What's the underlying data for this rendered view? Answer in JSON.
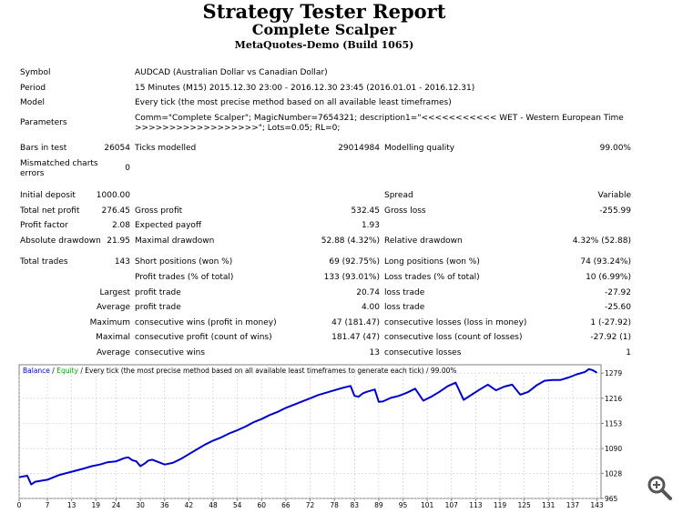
{
  "header": {
    "title": "Strategy Tester Report",
    "subtitle": "Complete Scalper",
    "server": "MetaQuotes-Demo (Build 1065)"
  },
  "info": {
    "symbol_label": "Symbol",
    "symbol_value": "AUDCAD (Australian Dollar vs Canadian Dollar)",
    "period_label": "Period",
    "period_value": "15 Minutes (M15) 2015.12.30 23:00 - 2016.12.30 23:45 (2016.01.01 - 2016.12.31)",
    "model_label": "Model",
    "model_value": "Every tick (the most precise method based on all available least timeframes)",
    "parameters_label": "Parameters",
    "parameters_line1": "Comm=\"Complete Scalper\"; MagicNumber=7654321; description1=\"<<<<<<<<<<< WET - Western European Time",
    "parameters_line2": ">>>>>>>>>>>>>>>>>>\"; Lots=0.05; RL=0;"
  },
  "stats": {
    "bars_label": "Bars in test",
    "bars_value": "26054",
    "ticks_label": "Ticks modelled",
    "ticks_value": "29014984",
    "quality_label": "Modelling quality",
    "quality_value": "99.00%",
    "mismatch_label_1": "Mismatched charts",
    "mismatch_label_2": "errors",
    "mismatch_value": "0",
    "deposit_label": "Initial deposit",
    "deposit_value": "1000.00",
    "spread_label": "Spread",
    "spread_value": "Variable",
    "net_label": "Total net profit",
    "net_value": "276.45",
    "gross_profit_label": "Gross profit",
    "gross_profit_value": "532.45",
    "gross_loss_label": "Gross loss",
    "gross_loss_value": "-255.99",
    "pf_label": "Profit factor",
    "pf_value": "2.08",
    "payoff_label": "Expected payoff",
    "payoff_value": "1.93",
    "abs_dd_label": "Absolute drawdown",
    "abs_dd_value": "21.95",
    "max_dd_label": "Maximal drawdown",
    "max_dd_value": "52.88 (4.32%)",
    "rel_dd_label": "Relative drawdown",
    "rel_dd_value": "4.32% (52.88)",
    "trades_label": "Total trades",
    "trades_value": "143",
    "short_label": "Short positions (won %)",
    "short_value": "69 (92.75%)",
    "long_label": "Long positions (won %)",
    "long_value": "74 (93.24%)",
    "ptrades_label": "Profit trades (% of total)",
    "ptrades_value": "133 (93.01%)",
    "ltrades_label": "Loss trades (% of total)",
    "ltrades_value": "10 (6.99%)",
    "largest_label": "Largest",
    "largest_profit_label": "profit trade",
    "largest_profit_value": "20.74",
    "largest_loss_label": "loss trade",
    "largest_loss_value": "-27.92",
    "average_label": "Average",
    "average_profit_label": "profit trade",
    "average_profit_value": "4.00",
    "average_loss_label": "loss trade",
    "average_loss_value": "-25.60",
    "maximum_label": "Maximum",
    "max_wins_label": "consecutive wins (profit in money)",
    "max_wins_value": "47 (181.47)",
    "max_losses_label": "consecutive losses (loss in money)",
    "max_losses_value": "1 (-27.92)",
    "maximal_label": "Maximal",
    "maximal_profit_label": "consecutive profit (count of wins)",
    "maximal_profit_value": "181.47 (47)",
    "maximal_loss_label": "consecutive loss (count of losses)",
    "maximal_loss_value": "-27.92 (1)",
    "average2_label": "Average",
    "avg_wins_label": "consecutive wins",
    "avg_wins_value": "13",
    "avg_losses_label": "consecutive losses",
    "avg_losses_value": "1"
  },
  "chart_legend": {
    "balance": "Balance",
    "sep": " / ",
    "equity": "Equity",
    "rest": " / Every tick (the most precise method based on all available least timeframes to generate each tick) / 99.00%"
  },
  "colors": {
    "balance": "#0000cc",
    "equity": "#00aa00",
    "grid": "#c8c8c8",
    "frame": "#808080"
  },
  "chart_data": {
    "type": "line",
    "x_ticks": [
      "0",
      "7",
      "13",
      "19",
      "24",
      "30",
      "36",
      "42",
      "48",
      "54",
      "60",
      "66",
      "72",
      "78",
      "83",
      "89",
      "95",
      "101",
      "107",
      "113",
      "119",
      "125",
      "131",
      "137",
      "143"
    ],
    "y_ticks": [
      "1279",
      "1216",
      "1153",
      "1090",
      "1028",
      "965"
    ],
    "xlim": [
      0,
      144
    ],
    "ylim": [
      965,
      1300
    ],
    "series": [
      {
        "name": "Balance",
        "x": [
          0,
          2,
          3,
          4,
          7,
          10,
          13,
          16,
          18,
          20,
          22,
          24,
          26,
          27,
          28,
          29,
          30,
          31,
          32,
          33,
          36,
          38,
          40,
          42,
          44,
          46,
          48,
          50,
          52,
          54,
          56,
          58,
          60,
          62,
          64,
          66,
          68,
          70,
          72,
          74,
          76,
          78,
          80,
          82,
          83,
          84,
          85,
          86,
          88,
          89,
          90,
          92,
          94,
          96,
          98,
          100,
          102,
          104,
          106,
          108,
          110,
          112,
          114,
          116,
          118,
          120,
          122,
          124,
          126,
          128,
          130,
          132,
          134,
          136,
          138,
          140,
          141,
          142,
          143
        ],
        "y": [
          1018,
          1022,
          1000,
          1007,
          1012,
          1024,
          1032,
          1040,
          1046,
          1050,
          1056,
          1058,
          1066,
          1068,
          1061,
          1058,
          1046,
          1052,
          1060,
          1062,
          1050,
          1054,
          1064,
          1076,
          1088,
          1100,
          1110,
          1118,
          1128,
          1136,
          1145,
          1156,
          1164,
          1174,
          1182,
          1192,
          1200,
          1208,
          1216,
          1224,
          1230,
          1236,
          1242,
          1247,
          1222,
          1220,
          1228,
          1232,
          1238,
          1207,
          1208,
          1217,
          1222,
          1230,
          1240,
          1210,
          1220,
          1232,
          1246,
          1255,
          1212,
          1225,
          1238,
          1250,
          1236,
          1245,
          1250,
          1225,
          1232,
          1248,
          1260,
          1262,
          1262,
          1268,
          1276,
          1282,
          1289,
          1286,
          1280
        ]
      }
    ]
  },
  "zoom_icon": "zoom-in-icon"
}
